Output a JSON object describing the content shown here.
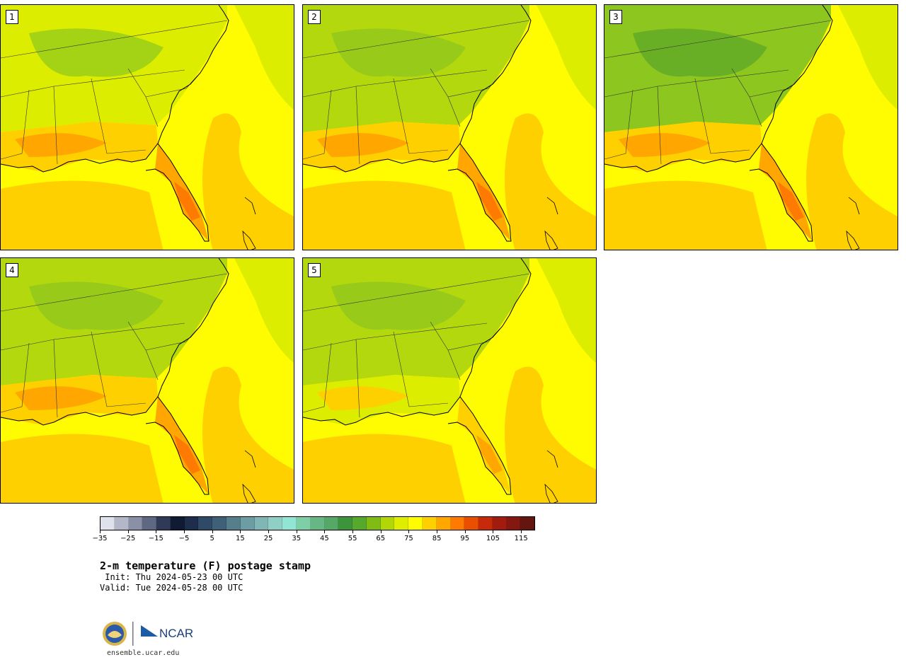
{
  "figure": {
    "title": "2-m temperature (F) postage stamp",
    "init": " Init: Thu 2024-05-23 00 UTC",
    "valid": "Valid: Tue 2024-05-28 00 UTC",
    "website": "ensemble.ucar.edu",
    "logo_text": "NCAR"
  },
  "panels": [
    {
      "label": "1"
    },
    {
      "label": "2"
    },
    {
      "label": "3"
    },
    {
      "label": "4"
    },
    {
      "label": "5"
    }
  ],
  "colorbar": {
    "ticks": [
      "−35",
      "−25",
      "−15",
      "−5",
      "5",
      "15",
      "25",
      "35",
      "45",
      "55",
      "65",
      "75",
      "85",
      "95",
      "105",
      "115"
    ],
    "colors": [
      "#dfe2ea",
      "#b3b7c8",
      "#8a90a6",
      "#5f6883",
      "#2f3a57",
      "#101a33",
      "#1d2d4c",
      "#2f4a66",
      "#3f6178",
      "#567f8c",
      "#6c9da3",
      "#80b6b5",
      "#8fcfc6",
      "#90e6d2",
      "#7fcfa6",
      "#67b785",
      "#55a866",
      "#3c953a",
      "#56a92a",
      "#80bd14",
      "#b2d607",
      "#dfee00",
      "#fffd00",
      "#ffd000",
      "#ffa600",
      "#ff7a00",
      "#ea4f00",
      "#c72a0b",
      "#a21b0f",
      "#84170f",
      "#651510"
    ],
    "palette": {
      "green_dark": "#5aa52a",
      "green": "#8cc61e",
      "green_light": "#b4d80e",
      "yellow_green": "#dced00",
      "yellow": "#fffb00",
      "orange_light": "#ffd000",
      "orange": "#ffa600",
      "orange_dark": "#ff7a00"
    }
  }
}
